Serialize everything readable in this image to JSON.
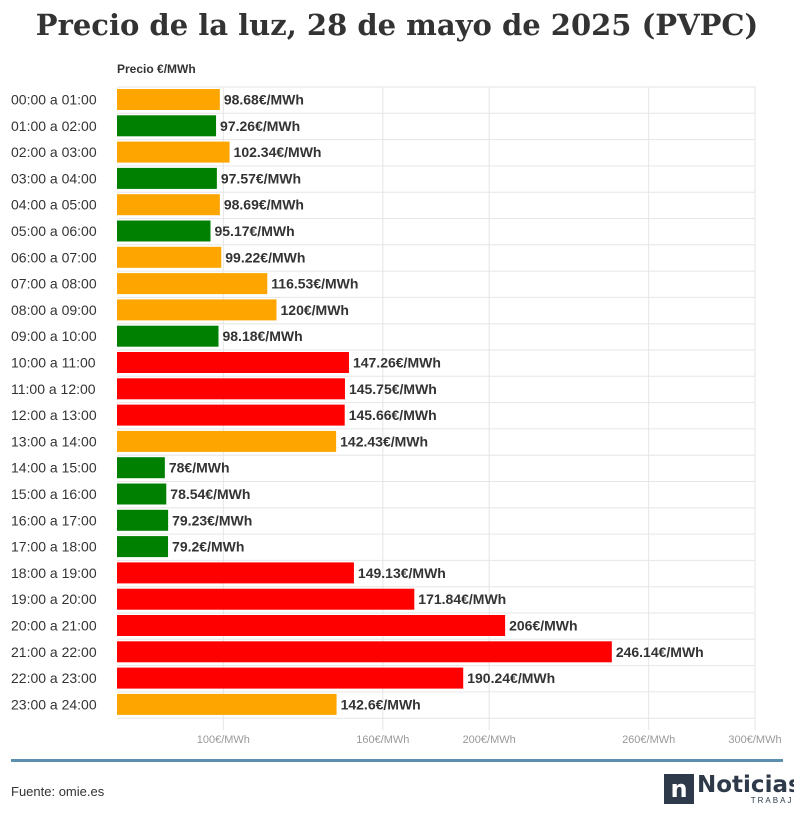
{
  "title": "Precio de la luz, 28 de mayo de 2025 (PVPC)",
  "source": "Fuente: omie.es",
  "logo": {
    "name": "Noticias",
    "sub": "TRABAJO",
    "mark": "n"
  },
  "colors": {
    "high": "#ff0000",
    "mid": "#ffa500",
    "low": "#008000",
    "grid": "#e6e6e6",
    "text": "#333333",
    "tick": "#999999",
    "rule": "#5b8fb0",
    "logo": "#2e3a4a"
  },
  "icons": {
    "logo_mark": "noticias-trabajo-logo-icon"
  },
  "chart_data": {
    "type": "bar",
    "orientation": "horizontal",
    "title": "Precio de la luz, 28 de mayo de 2025 (PVPC)",
    "ylabel": "Precio €/MWh",
    "xlim": [
      60,
      300
    ],
    "x_ticks": [
      {
        "value": 100,
        "label": "100€/MWh"
      },
      {
        "value": 160,
        "label": "160€/MWh"
      },
      {
        "value": 200,
        "label": "200€/MWh"
      },
      {
        "value": 260,
        "label": "260€/MWh"
      },
      {
        "value": 300,
        "label": "300€/MWh"
      }
    ],
    "grid": true,
    "categories": [
      "00:00 a 01:00",
      "01:00 a 02:00",
      "02:00 a 03:00",
      "03:00 a 04:00",
      "04:00 a 05:00",
      "05:00 a 06:00",
      "06:00 a 07:00",
      "07:00 a 08:00",
      "08:00 a 09:00",
      "09:00 a 10:00",
      "10:00 a 11:00",
      "11:00 a 12:00",
      "12:00 a 13:00",
      "13:00 a 14:00",
      "14:00 a 15:00",
      "15:00 a 16:00",
      "16:00 a 17:00",
      "17:00 a 18:00",
      "18:00 a 19:00",
      "19:00 a 20:00",
      "20:00 a 21:00",
      "21:00 a 22:00",
      "22:00 a 23:00",
      "23:00 a 24:00"
    ],
    "values": [
      98.68,
      97.26,
      102.34,
      97.57,
      98.69,
      95.17,
      99.22,
      116.53,
      120,
      98.18,
      147.26,
      145.75,
      145.66,
      142.43,
      78,
      78.54,
      79.23,
      79.2,
      149.13,
      171.84,
      206,
      246.14,
      190.24,
      142.6
    ],
    "labels": [
      "98.68€/MWh",
      "97.26€/MWh",
      "102.34€/MWh",
      "97.57€/MWh",
      "98.69€/MWh",
      "95.17€/MWh",
      "99.22€/MWh",
      "116.53€/MWh",
      "120€/MWh",
      "98.18€/MWh",
      "147.26€/MWh",
      "145.75€/MWh",
      "145.66€/MWh",
      "142.43€/MWh",
      "78€/MWh",
      "78.54€/MWh",
      "79.23€/MWh",
      "79.2€/MWh",
      "149.13€/MWh",
      "171.84€/MWh",
      "206€/MWh",
      "246.14€/MWh",
      "190.24€/MWh",
      "142.6€/MWh"
    ],
    "levels": [
      "mid",
      "low",
      "mid",
      "low",
      "mid",
      "low",
      "mid",
      "mid",
      "mid",
      "low",
      "high",
      "high",
      "high",
      "mid",
      "low",
      "low",
      "low",
      "low",
      "high",
      "high",
      "high",
      "high",
      "high",
      "mid"
    ]
  }
}
